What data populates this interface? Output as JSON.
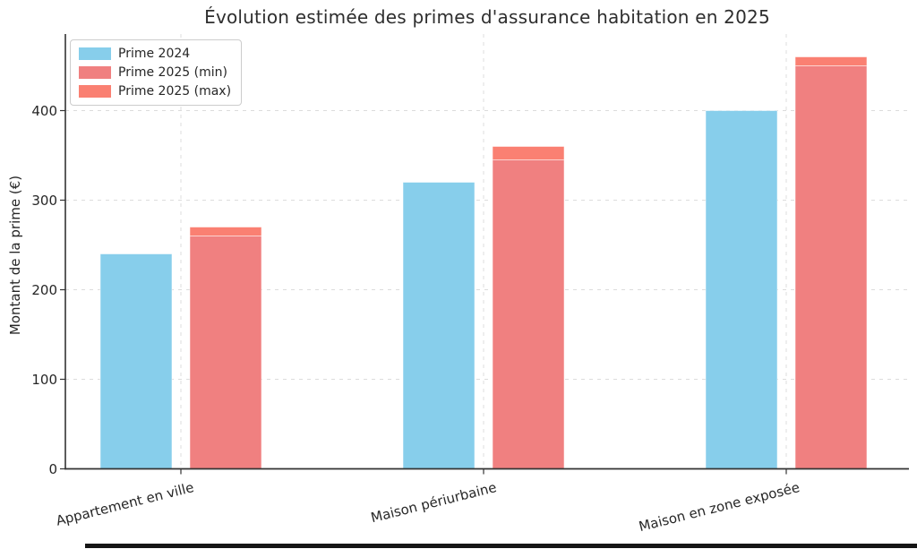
{
  "chart_data": {
    "type": "bar",
    "title": "Évolution estimée des primes d'assurance habitation en 2025",
    "ylabel": "Montant de la prime (€)",
    "xlabel": "",
    "categories": [
      "Appartement en ville",
      "Maison périurbaine",
      "Maison en zone exposée"
    ],
    "series": [
      {
        "name": "Prime 2024",
        "color": "#87CEEB",
        "values": [
          240,
          320,
          400
        ]
      },
      {
        "name": "Prime 2025 (min)",
        "color": "#F08080",
        "values": [
          260,
          345,
          450
        ]
      },
      {
        "name": "Prime 2025 (max)",
        "color": "#FA8072",
        "values": [
          270,
          360,
          460
        ]
      }
    ],
    "stacking": "Prime 2025 (min) drawn from 0; Prime 2025 (max) drawn as cap from min to max on same bar",
    "y_ticks": [
      0,
      100,
      200,
      300,
      400
    ],
    "ylim": [
      0,
      488
    ],
    "grid": true,
    "grid_style": "dashed",
    "grid_color": "#dcdcdc",
    "axis_color": "#333333",
    "text_color": "#262626",
    "legend_position": "upper left",
    "legend_entries": [
      "Prime 2024",
      "Prime 2025 (min)",
      "Prime 2025 (max)"
    ],
    "x_tick_rotation_deg": 14
  }
}
